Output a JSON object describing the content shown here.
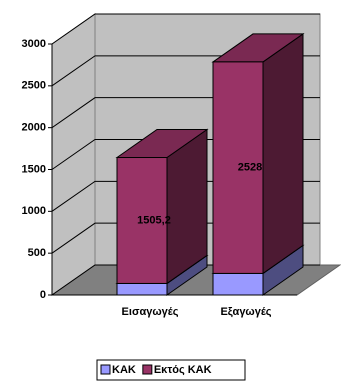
{
  "chart_data": {
    "type": "bar3d_stacked",
    "categories": [
      "Εισαγωγές",
      "Εξαγωγές"
    ],
    "series": [
      {
        "name": "ΚΑΚ",
        "color": "#9999ff",
        "values": [
          138,
          258
        ]
      },
      {
        "name": "Εκτός ΚΑΚ",
        "color": "#993366",
        "values": [
          1505.2,
          2528
        ],
        "value_labels": [
          "1505,2",
          "2528"
        ]
      }
    ],
    "ylim": [
      0,
      3000
    ],
    "yticks": [
      0,
      500,
      1000,
      1500,
      2000,
      2500,
      3000
    ],
    "grid": true,
    "legend": "bottom"
  }
}
